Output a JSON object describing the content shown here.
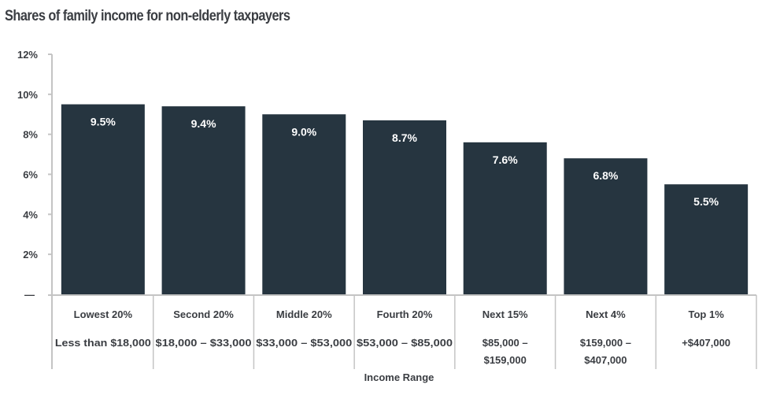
{
  "chart_data": {
    "type": "bar",
    "title": "Shares of family income for non-elderly taxpayers",
    "xlabel": "Income Range",
    "ylabel": "",
    "ylim": [
      0,
      12
    ],
    "yticks": [
      0,
      2,
      4,
      6,
      8,
      10,
      12
    ],
    "ytick_labels": [
      "—",
      "2%",
      "4%",
      "6%",
      "8%",
      "10%",
      "12%"
    ],
    "grid": false,
    "legend": "none",
    "categories": [
      "Lowest 20%",
      "Second 20%",
      "Middle 20%",
      "Fourth 20%",
      "Next 15%",
      "Next 4%",
      "Top 1%"
    ],
    "category_ranges": [
      [
        "Less than $18,000"
      ],
      [
        "$18,000 – $33,000"
      ],
      [
        "$33,000 – $53,000"
      ],
      [
        "$53,000 – $85,000"
      ],
      [
        "$85,000 –",
        "$159,000"
      ],
      [
        "$159,000 –",
        "$407,000"
      ],
      [
        "+$407,000"
      ]
    ],
    "values": [
      9.5,
      9.4,
      9.0,
      8.7,
      7.6,
      6.8,
      5.5
    ],
    "value_labels": [
      "9.5%",
      "9.4%",
      "9.0%",
      "8.7%",
      "7.6%",
      "6.8%",
      "5.5%"
    ],
    "colors": {
      "bar": "#263540",
      "axis": "#c4c4c4",
      "text": "#3a3d42",
      "bar_text": "#ffffff"
    }
  }
}
